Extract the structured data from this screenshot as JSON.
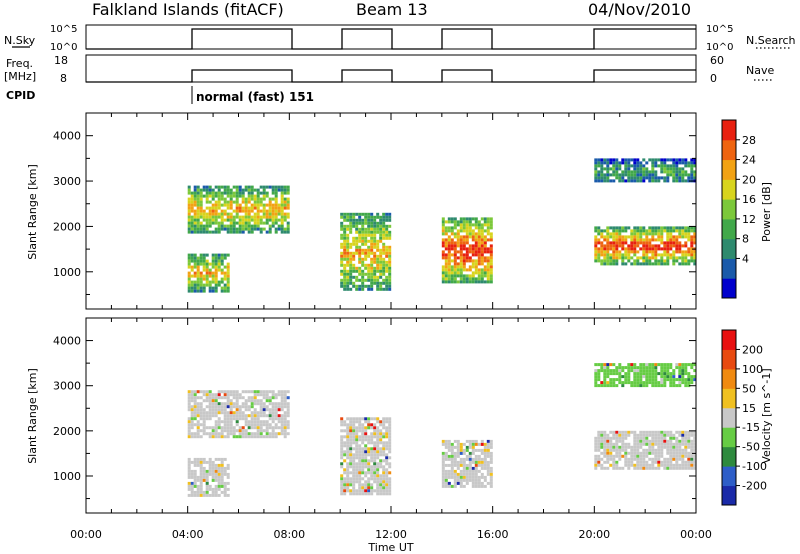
{
  "header": {
    "station": "Falkland Islands (fitACF)",
    "beam": "Beam 13",
    "date": "04/Nov/2010"
  },
  "params": {
    "nsky_label": "N.Sky",
    "nsearch_label": "N.Search",
    "nsky_ticks": [
      "10^5",
      "10^0"
    ],
    "nsearch_ticks": [
      "10^5",
      "10^0"
    ],
    "freq_label_top": "Freq.",
    "freq_label_bottom": "[MHz]",
    "freq_ticks": [
      "18",
      "8"
    ],
    "nave_label": "Nave",
    "nave_ticks": [
      "60",
      "0"
    ],
    "cpid_label": "CPID",
    "cpid_value": "normal (fast) 151"
  },
  "chart_data": [
    {
      "type": "heatmap",
      "title": "",
      "xlabel": "Time UT",
      "ylabel": "Slant Range [km]",
      "x_ticks": [
        "00:00",
        "04:00",
        "08:00",
        "12:00",
        "16:00",
        "20:00",
        "00:00"
      ],
      "xlim_hours": [
        0,
        24
      ],
      "y_ticks": [
        1000,
        2000,
        3000,
        4000
      ],
      "ylim": [
        180,
        4500
      ],
      "colorbar_label": "Power [dB]",
      "colorbar_ticks": [
        "28",
        "24",
        "20",
        "16",
        "12",
        "8",
        "4"
      ],
      "colors": [
        "#0000cc",
        "#1a5aaa",
        "#2e8a6e",
        "#41a84a",
        "#7cc83a",
        "#d8d41e",
        "#f2a214",
        "#ee6410",
        "#e82010"
      ],
      "operating_intervals_hours": [
        [
          4,
          8
        ],
        [
          10,
          12
        ],
        [
          14,
          16
        ],
        [
          20,
          24
        ]
      ],
      "echo_regions": [
        {
          "time": [
            4,
            8
          ],
          "range": [
            1900,
            2900
          ],
          "power_db": 20
        },
        {
          "time": [
            4,
            5.6
          ],
          "range": [
            600,
            1400
          ],
          "power_db": 22
        },
        {
          "time": [
            10,
            12
          ],
          "range": [
            600,
            2300
          ],
          "power_db": 22
        },
        {
          "time": [
            14,
            16
          ],
          "range": [
            800,
            2200
          ],
          "power_db": 26
        },
        {
          "time": [
            20,
            24
          ],
          "range": [
            1200,
            2000
          ],
          "power_db": 28
        },
        {
          "time": [
            20,
            24
          ],
          "range": [
            3000,
            3500
          ],
          "power_db": 12
        }
      ]
    },
    {
      "type": "heatmap",
      "title": "",
      "xlabel": "Time UT",
      "ylabel": "Slant Range [km]",
      "x_ticks": [
        "00:00",
        "04:00",
        "08:00",
        "12:00",
        "16:00",
        "20:00",
        "00:00"
      ],
      "xlim_hours": [
        0,
        24
      ],
      "y_ticks": [
        1000,
        2000,
        3000,
        4000
      ],
      "ylim": [
        180,
        4500
      ],
      "colorbar_label": "Velocity [m s^-1]",
      "colorbar_ticks": [
        "200",
        "100",
        "50",
        "15",
        "-15",
        "-50",
        "-100",
        "-200"
      ],
      "colors": [
        "#1a2aa8",
        "#2e5ec8",
        "#2e8a3e",
        "#66cc44",
        "#c8c8c8",
        "#f0c020",
        "#f08a10",
        "#e84a10",
        "#e81010"
      ],
      "echo_regions": [
        {
          "time": [
            4,
            8
          ],
          "range": [
            1900,
            2900
          ],
          "velocity": 0
        },
        {
          "time": [
            4,
            5.6
          ],
          "range": [
            600,
            1400
          ],
          "velocity": 0
        },
        {
          "time": [
            10,
            12
          ],
          "range": [
            600,
            2300
          ],
          "velocity": 0
        },
        {
          "time": [
            14,
            16
          ],
          "range": [
            800,
            1800
          ],
          "velocity": 0
        },
        {
          "time": [
            20,
            24
          ],
          "range": [
            1200,
            2000
          ],
          "velocity": 0
        },
        {
          "time": [
            20,
            24
          ],
          "range": [
            3000,
            3500
          ],
          "velocity": -30
        }
      ]
    }
  ]
}
